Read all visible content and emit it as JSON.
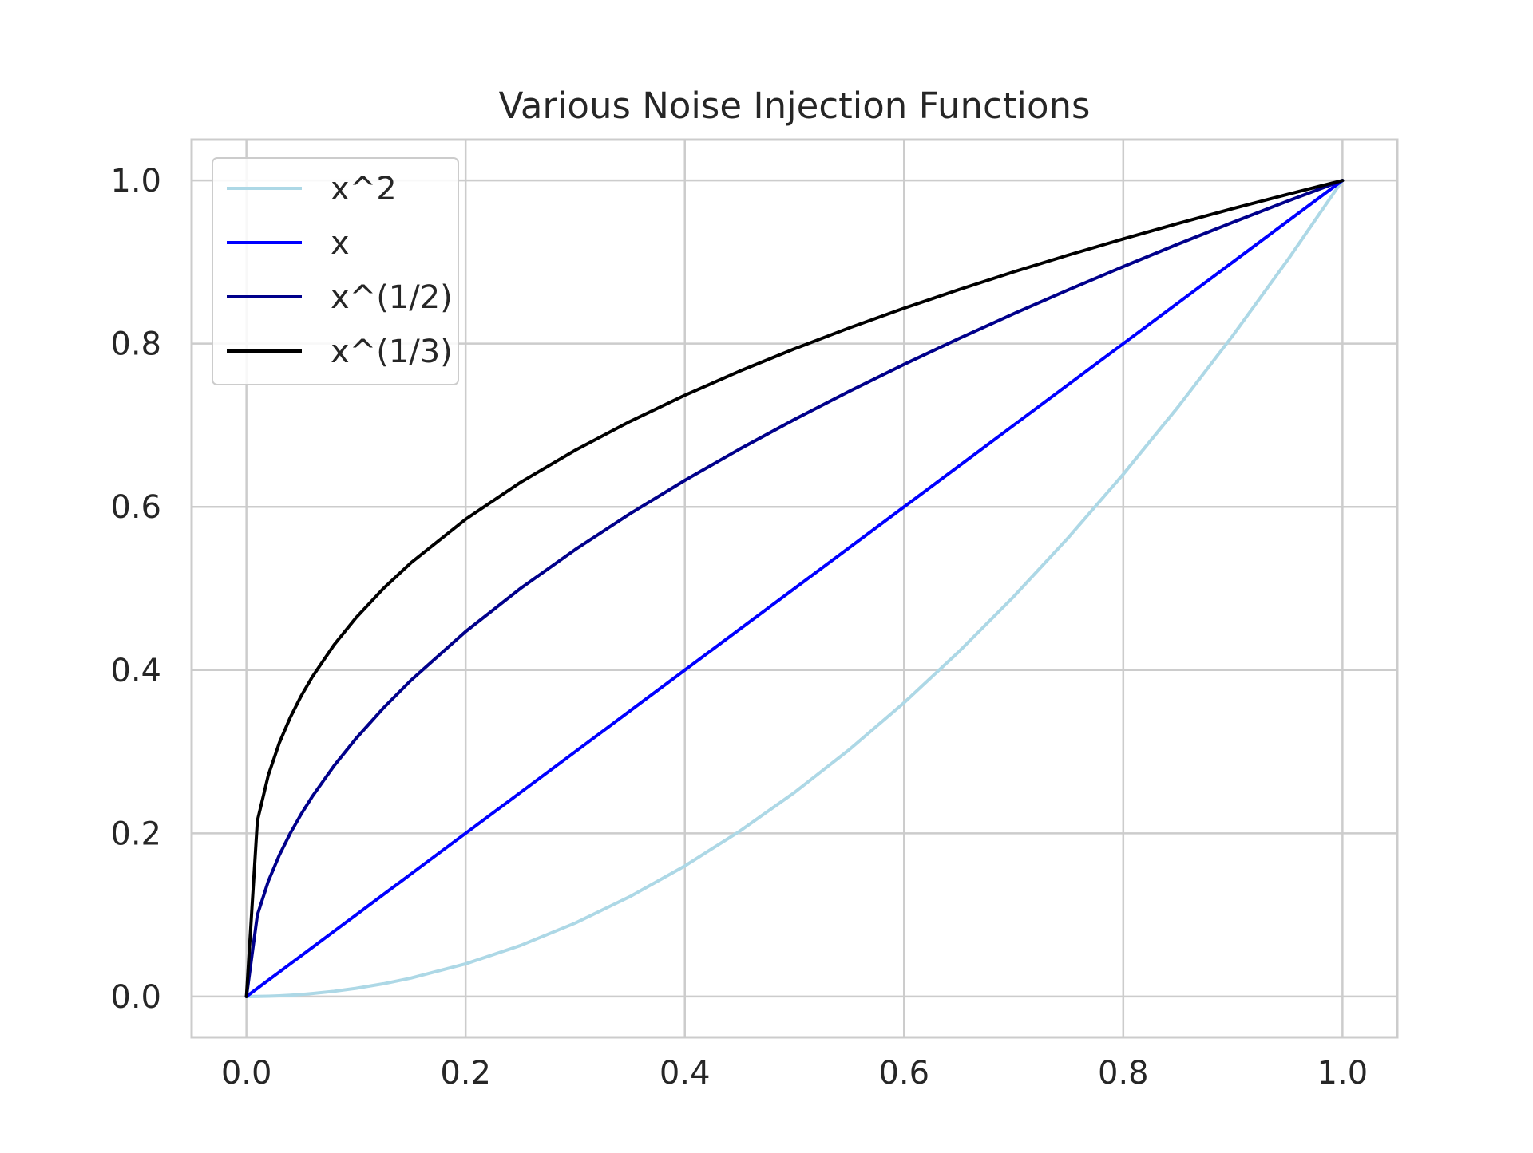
{
  "chart_data": {
    "type": "line",
    "title": "Various Noise Injection Functions",
    "xlabel": "",
    "ylabel": "",
    "xlim": [
      -0.05,
      1.05
    ],
    "ylim": [
      -0.05,
      1.05
    ],
    "xticks": [
      0.0,
      0.2,
      0.4,
      0.6,
      0.8,
      1.0
    ],
    "xtick_labels": [
      "0.0",
      "0.2",
      "0.4",
      "0.6",
      "0.8",
      "1.0"
    ],
    "yticks": [
      0.0,
      0.2,
      0.4,
      0.6,
      0.8,
      1.0
    ],
    "ytick_labels": [
      "0.0",
      "0.2",
      "0.4",
      "0.6",
      "0.8",
      "1.0"
    ],
    "grid": true,
    "legend_position": "upper-left",
    "x": [
      0.0,
      0.01,
      0.02,
      0.03,
      0.04,
      0.05,
      0.06,
      0.08,
      0.1,
      0.125,
      0.15,
      0.2,
      0.25,
      0.3,
      0.35,
      0.4,
      0.45,
      0.5,
      0.55,
      0.6,
      0.65,
      0.7,
      0.75,
      0.8,
      0.85,
      0.9,
      0.95,
      1.0
    ],
    "series": [
      {
        "name": "x^2",
        "color": "#add8e6",
        "values": [
          0.0,
          0.0001,
          0.0004,
          0.0009,
          0.0016,
          0.0025,
          0.0036,
          0.0064,
          0.01,
          0.0156,
          0.0225,
          0.04,
          0.0625,
          0.09,
          0.1225,
          0.16,
          0.2025,
          0.25,
          0.3025,
          0.36,
          0.4225,
          0.49,
          0.5625,
          0.64,
          0.7225,
          0.81,
          0.9025,
          1.0
        ]
      },
      {
        "name": "x",
        "color": "#0000ff",
        "values": [
          0.0,
          0.01,
          0.02,
          0.03,
          0.04,
          0.05,
          0.06,
          0.08,
          0.1,
          0.125,
          0.15,
          0.2,
          0.25,
          0.3,
          0.35,
          0.4,
          0.45,
          0.5,
          0.55,
          0.6,
          0.65,
          0.7,
          0.75,
          0.8,
          0.85,
          0.9,
          0.95,
          1.0
        ]
      },
      {
        "name": "x^(1/2)",
        "color": "#00008b",
        "values": [
          0.0,
          0.1,
          0.1414,
          0.1732,
          0.2,
          0.2236,
          0.2449,
          0.2828,
          0.3162,
          0.3536,
          0.3873,
          0.4472,
          0.5,
          0.5477,
          0.5916,
          0.6325,
          0.6708,
          0.7071,
          0.7416,
          0.7746,
          0.8062,
          0.8367,
          0.866,
          0.8944,
          0.922,
          0.9487,
          0.9747,
          1.0
        ]
      },
      {
        "name": "x^(1/3)",
        "color": "#000000",
        "values": [
          0.0,
          0.2154,
          0.2714,
          0.3107,
          0.342,
          0.3684,
          0.3915,
          0.4309,
          0.4642,
          0.5,
          0.5313,
          0.5848,
          0.63,
          0.6694,
          0.7047,
          0.7368,
          0.7663,
          0.7937,
          0.8193,
          0.8434,
          0.8662,
          0.8879,
          0.9086,
          0.9283,
          0.9473,
          0.9655,
          0.983,
          1.0
        ]
      }
    ]
  }
}
